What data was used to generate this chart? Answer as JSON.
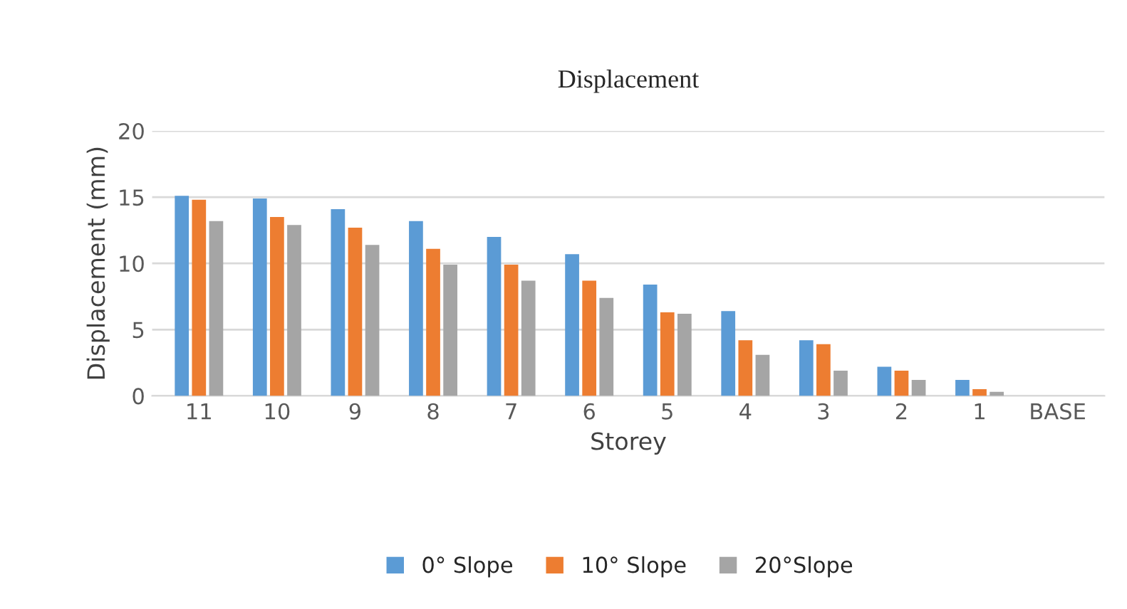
{
  "chart_data": {
    "type": "bar",
    "title": "Displacement",
    "xlabel": "Storey",
    "ylabel": "Displacement (mm)",
    "categories": [
      "11",
      "10",
      "9",
      "8",
      "7",
      "6",
      "5",
      "4",
      "3",
      "2",
      "1",
      "BASE"
    ],
    "series": [
      {
        "name": "0° Slope",
        "color": "#5b9bd5",
        "values": [
          15.1,
          14.9,
          14.1,
          13.2,
          12.0,
          10.7,
          8.4,
          6.4,
          4.2,
          2.2,
          1.2,
          0
        ]
      },
      {
        "name": "10° Slope",
        "color": "#ed7d31",
        "values": [
          14.8,
          13.5,
          12.7,
          11.1,
          9.9,
          8.7,
          6.3,
          4.2,
          3.9,
          1.9,
          0.5,
          0
        ]
      },
      {
        "name": "20°Slope",
        "color": "#a5a5a5",
        "values": [
          13.2,
          12.9,
          11.4,
          9.9,
          8.7,
          7.4,
          6.2,
          3.1,
          1.9,
          1.2,
          0.3,
          0
        ]
      }
    ],
    "ylim": [
      0,
      20
    ],
    "yticks": [
      0,
      5,
      10,
      15,
      20
    ],
    "grid": "y",
    "legend": "bottom"
  }
}
